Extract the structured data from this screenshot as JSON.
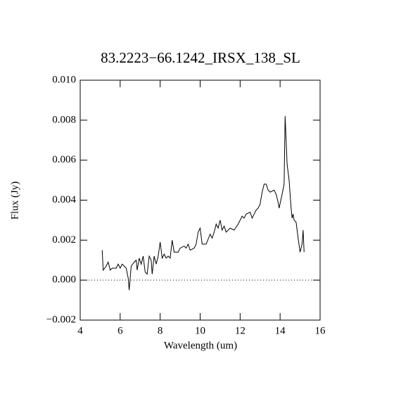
{
  "chart_data": {
    "type": "line",
    "title": "83.2223−66.1242_IRSX_138_SL",
    "x_label": "Wavelength (um)",
    "y_label": "Flux (Jy)",
    "x": [
      5.1,
      5.15,
      5.3,
      5.4,
      5.5,
      5.6,
      5.8,
      5.9,
      6.0,
      6.1,
      6.2,
      6.3,
      6.4,
      6.45,
      6.55,
      6.7,
      6.8,
      6.85,
      6.95,
      7.05,
      7.15,
      7.25,
      7.35,
      7.45,
      7.55,
      7.6,
      7.7,
      7.8,
      7.9,
      8.0,
      8.1,
      8.2,
      8.3,
      8.4,
      8.5,
      8.6,
      8.7,
      8.9,
      9.0,
      9.2,
      9.3,
      9.4,
      9.5,
      9.7,
      9.8,
      9.9,
      10.0,
      10.1,
      10.3,
      10.5,
      10.6,
      10.7,
      10.8,
      10.9,
      11.0,
      11.1,
      11.2,
      11.3,
      11.5,
      11.7,
      11.9,
      12.0,
      12.1,
      12.2,
      12.3,
      12.5,
      12.6,
      12.8,
      12.9,
      13.0,
      13.1,
      13.2,
      13.3,
      13.4,
      13.5,
      13.7,
      13.8,
      13.9,
      13.95,
      14.1,
      14.2,
      14.25,
      14.35,
      14.45,
      14.55,
      14.6,
      14.65,
      14.7,
      14.8,
      14.9,
      15.0,
      15.1,
      15.15,
      15.2
    ],
    "values": [
      0.0015,
      0.0005,
      0.0007,
      0.0009,
      0.0005,
      0.0006,
      0.0006,
      0.0008,
      0.0006,
      0.0008,
      0.0007,
      0.0006,
      0.0001,
      -0.0005,
      0.0007,
      0.0009,
      0.001,
      0.0005,
      0.0011,
      0.0008,
      0.0012,
      0.0004,
      0.0003,
      0.0012,
      0.001,
      0.0003,
      0.0012,
      0.0008,
      0.0012,
      0.0019,
      0.0011,
      0.0013,
      0.0011,
      0.0012,
      0.0011,
      0.002,
      0.0014,
      0.0014,
      0.0016,
      0.0017,
      0.0016,
      0.0018,
      0.0015,
      0.0016,
      0.0018,
      0.0024,
      0.0026,
      0.0018,
      0.0018,
      0.0023,
      0.0021,
      0.0024,
      0.0028,
      0.0026,
      0.003,
      0.0025,
      0.0027,
      0.0024,
      0.0026,
      0.0025,
      0.0028,
      0.003,
      0.0032,
      0.0031,
      0.0033,
      0.0034,
      0.0031,
      0.0035,
      0.0036,
      0.0038,
      0.0044,
      0.0048,
      0.0048,
      0.0045,
      0.0044,
      0.0045,
      0.0043,
      0.0039,
      0.0036,
      0.0043,
      0.0048,
      0.0082,
      0.0058,
      0.005,
      0.0036,
      0.0031,
      0.0033,
      0.003,
      0.0029,
      0.0021,
      0.0014,
      0.0018,
      0.0025,
      0.0014
    ],
    "color": "#000000",
    "xlim": [
      4,
      16
    ],
    "xticks": [
      4,
      6,
      8,
      10,
      12,
      14,
      16
    ],
    "ylim": [
      -0.002,
      0.01
    ],
    "yticks": [
      {
        "value": -0.002,
        "label": "−0.002"
      },
      {
        "value": 0,
        "label": "0.000"
      },
      {
        "value": 0.002,
        "label": "0.002"
      },
      {
        "value": 0.004,
        "label": "0.004"
      },
      {
        "value": 0.006,
        "label": "0.006"
      },
      {
        "value": 0.008,
        "label": "0.008"
      },
      {
        "value": 0.01,
        "label": "0.010"
      }
    ],
    "hline": 0
  }
}
